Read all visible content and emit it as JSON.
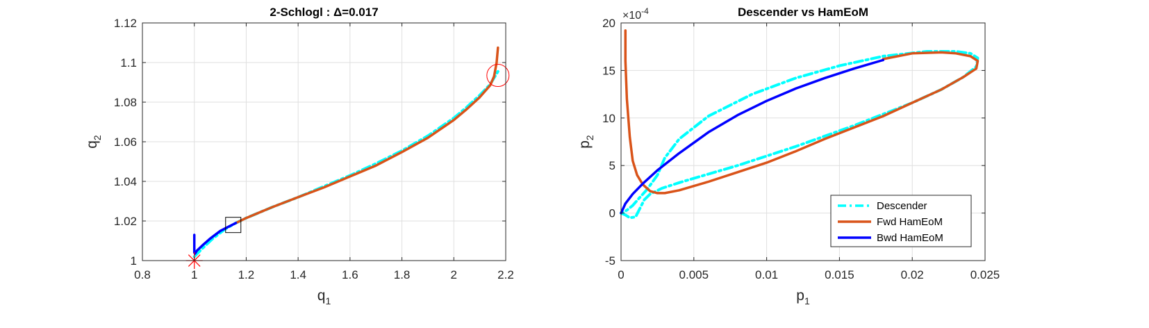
{
  "chart_data": [
    {
      "type": "line",
      "title": "2-Schlogl : Δ=0.017",
      "xlabel": "q",
      "xlabel_sub": "1",
      "ylabel": "q",
      "ylabel_sub": "2",
      "xlim": [
        0.8,
        2.2
      ],
      "ylim": [
        1.0,
        1.12
      ],
      "xticks": [
        "0.8",
        "1",
        "1.2",
        "1.4",
        "1.6",
        "1.8",
        "2",
        "2.2"
      ],
      "yticks": [
        "1",
        "1.02",
        "1.04",
        "1.06",
        "1.08",
        "1.1",
        "1.12"
      ],
      "grid": true,
      "series": [
        {
          "color": "#00ffff",
          "style": "dash-dot",
          "x": [
            1.0,
            1.03,
            1.07,
            1.12,
            1.16,
            1.2,
            1.3,
            1.4,
            1.5,
            1.6,
            1.7,
            1.8,
            1.9,
            2.0,
            2.05,
            2.1,
            2.14,
            2.17
          ],
          "y": [
            1.002,
            1.006,
            1.011,
            1.016,
            1.019,
            1.0215,
            1.027,
            1.032,
            1.0375,
            1.043,
            1.049,
            1.0555,
            1.063,
            1.072,
            1.0775,
            1.0835,
            1.089,
            1.0955
          ]
        },
        {
          "color": "#d95319",
          "style": "solid",
          "x": [
            1.16,
            1.2,
            1.3,
            1.4,
            1.5,
            1.6,
            1.7,
            1.8,
            1.9,
            2.0,
            2.05,
            2.1,
            2.14,
            2.155,
            2.165,
            2.17
          ],
          "y": [
            1.019,
            1.0215,
            1.027,
            1.032,
            1.037,
            1.0425,
            1.048,
            1.0548,
            1.062,
            1.071,
            1.0765,
            1.0825,
            1.0885,
            1.093,
            1.1,
            1.1075
          ]
        },
        {
          "color": "#0000ff",
          "style": "solid",
          "x": [
            1.0,
            1.0,
            1.0,
            1.003,
            1.01,
            1.03,
            1.06,
            1.1,
            1.13,
            1.16
          ],
          "y": [
            1.013,
            1.008,
            1.004,
            1.0035,
            1.005,
            1.0075,
            1.011,
            1.015,
            1.017,
            1.019
          ]
        }
      ],
      "markers": [
        {
          "type": "asterisk",
          "color": "#ff0000",
          "x": 1.0,
          "y": 1.0
        },
        {
          "type": "square",
          "color": "#000000",
          "x": 1.15,
          "y": 1.018
        },
        {
          "type": "circle",
          "color": "#ff0000",
          "x": 2.17,
          "y": 1.0935
        }
      ]
    },
    {
      "type": "line",
      "title": "Descender vs HamEoM",
      "xlabel": "p",
      "xlabel_sub": "1",
      "ylabel": "p",
      "ylabel_sub": "2",
      "y_exponent": "×10",
      "y_exponent_power": "-4",
      "xlim": [
        0,
        0.025
      ],
      "ylim": [
        -5,
        20
      ],
      "xticks": [
        "0",
        "0.005",
        "0.01",
        "0.015",
        "0.02",
        "0.025"
      ],
      "yticks": [
        "-5",
        "0",
        "5",
        "10",
        "15",
        "20"
      ],
      "grid": true,
      "legend": {
        "position": "bottom-right",
        "entries": [
          {
            "label": "Descender",
            "color": "#00ffff",
            "style": "dash-dot"
          },
          {
            "label": "Fwd HamEoM",
            "color": "#d95319",
            "style": "solid"
          },
          {
            "label": "Bwd HamEoM",
            "color": "#0000ff",
            "style": "solid"
          }
        ]
      },
      "series": [
        {
          "name": "Descender",
          "color": "#00ffff",
          "style": "dash-dot",
          "x": [
            0.0,
            0.0003,
            0.0006,
            0.001,
            0.0013,
            0.0016,
            0.002,
            0.0028,
            0.004,
            0.006,
            0.008,
            0.01,
            0.012,
            0.014,
            0.016,
            0.018,
            0.02,
            0.022,
            0.0235,
            0.0244,
            0.0245,
            0.024,
            0.023,
            0.021,
            0.018,
            0.015,
            0.012,
            0.009,
            0.006,
            0.004,
            0.003,
            0.0025,
            0.0018,
            0.0012,
            0.0008,
            0.0004,
            0.0
          ],
          "y": [
            0.0,
            -0.2,
            -0.5,
            -0.4,
            0.5,
            1.4,
            2.0,
            2.6,
            3.2,
            4.1,
            5.0,
            6.0,
            7.0,
            8.1,
            9.2,
            10.4,
            11.6,
            13.0,
            14.3,
            15.4,
            16.3,
            16.8,
            17.0,
            17.0,
            16.5,
            15.5,
            14.2,
            12.5,
            10.2,
            7.8,
            5.8,
            4.0,
            2.5,
            1.5,
            0.8,
            0.3,
            0.0
          ]
        },
        {
          "name": "Fwd HamEoM",
          "color": "#d95319",
          "style": "solid",
          "x": [
            0.0003,
            0.0003,
            0.0004,
            0.0006,
            0.0008,
            0.0011,
            0.0015,
            0.002,
            0.0025,
            0.003,
            0.004,
            0.006,
            0.008,
            0.01,
            0.012,
            0.014,
            0.016,
            0.018,
            0.02,
            0.022,
            0.0235,
            0.0244,
            0.0245,
            0.024,
            0.023,
            0.022,
            0.02,
            0.018
          ],
          "y": [
            19.2,
            16.0,
            12.0,
            8.0,
            5.5,
            4.0,
            3.0,
            2.3,
            2.1,
            2.1,
            2.4,
            3.3,
            4.3,
            5.3,
            6.5,
            7.8,
            9.0,
            10.2,
            11.6,
            13.0,
            14.3,
            15.2,
            16.0,
            16.5,
            16.8,
            16.9,
            16.8,
            16.2
          ]
        },
        {
          "name": "Bwd HamEoM",
          "color": "#0000ff",
          "style": "solid",
          "x": [
            0.0,
            0.0003,
            0.0008,
            0.0015,
            0.0025,
            0.004,
            0.006,
            0.008,
            0.01,
            0.012,
            0.014,
            0.016,
            0.018
          ],
          "y": [
            0.0,
            1.0,
            2.0,
            3.1,
            4.5,
            6.3,
            8.5,
            10.3,
            11.8,
            13.1,
            14.2,
            15.2,
            16.1
          ]
        }
      ]
    }
  ]
}
